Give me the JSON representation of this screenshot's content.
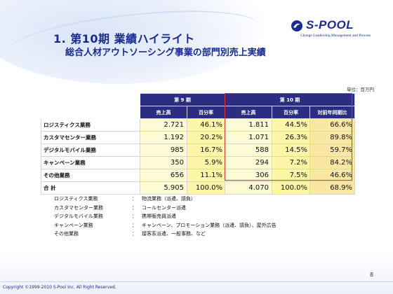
{
  "title": {
    "main": "1. 第10期 業績ハイライト",
    "sub": "総合人材アウトソーシング事業の部門別売上実績"
  },
  "logo": {
    "name": "S-POOL",
    "tagline": "Change Leadership,Management and Process"
  },
  "unit": "単位：百万円",
  "table": {
    "period_headers": [
      "第 9 期",
      "第 10 期"
    ],
    "column_headers": [
      "売上高",
      "百分率",
      "売上高",
      "百分率",
      "対前年同期比"
    ],
    "rows": [
      {
        "name": "ロジスティクス業務",
        "p9_sales": "2.721",
        "p9_pct": "46.1%",
        "p10_sales": "1.811",
        "p10_pct": "44.5%",
        "yoy": "66.6%"
      },
      {
        "name": "カスタマセンター業務",
        "p9_sales": "1.192",
        "p9_pct": "20.2%",
        "p10_sales": "1.071",
        "p10_pct": "26.3%",
        "yoy": "89.8%"
      },
      {
        "name": "デジタルモバイル業務",
        "p9_sales": "985",
        "p9_pct": "16.7%",
        "p10_sales": "588",
        "p10_pct": "14.5%",
        "yoy": "59.7%"
      },
      {
        "name": "キャンペーン業務",
        "p9_sales": "350",
        "p9_pct": "5.9%",
        "p10_sales": "294",
        "p10_pct": "7.2%",
        "yoy": "84.2%"
      },
      {
        "name": "その他業務",
        "p9_sales": "656",
        "p9_pct": "11.1%",
        "p10_sales": "306",
        "p10_pct": "7.5%",
        "yoy": "46.6%"
      }
    ],
    "total": {
      "name": "合 計",
      "p9_sales": "5.905",
      "p9_pct": "100.0%",
      "p10_sales": "4.070",
      "p10_pct": "100.0%",
      "yoy": "68.9%"
    }
  },
  "legend": [
    {
      "label": "ロジスティクス業務",
      "colon": "：",
      "desc": "物流業務（派遣、請負）"
    },
    {
      "label": "カスタマセンター業務",
      "colon": "：",
      "desc": "コールセンター派遣"
    },
    {
      "label": "デジタルモバイル業務",
      "colon": "：",
      "desc": "携帯販売員派遣"
    },
    {
      "label": "キャンペーン業務",
      "colon": "：",
      "desc": "キャンペーン、プロモーション業務（派遣、請負）、屋外広告"
    },
    {
      "label": "その他業務",
      "colon": "：",
      "desc": "接客系派遣、一般事務、など"
    }
  ],
  "footer": {
    "copyright": "Copyright ©1999-2010 S-Pool Inc. All Right Reserved.",
    "page": "8"
  },
  "colors": {
    "title": "#1a2b8f",
    "header_bg": "#2b2e80",
    "highlight_border": "#e0302a",
    "cell_pale_yellow": "#fdfad6",
    "cell_yellow": "#fcf6a6",
    "cell_orange": "#fbe7a4"
  }
}
